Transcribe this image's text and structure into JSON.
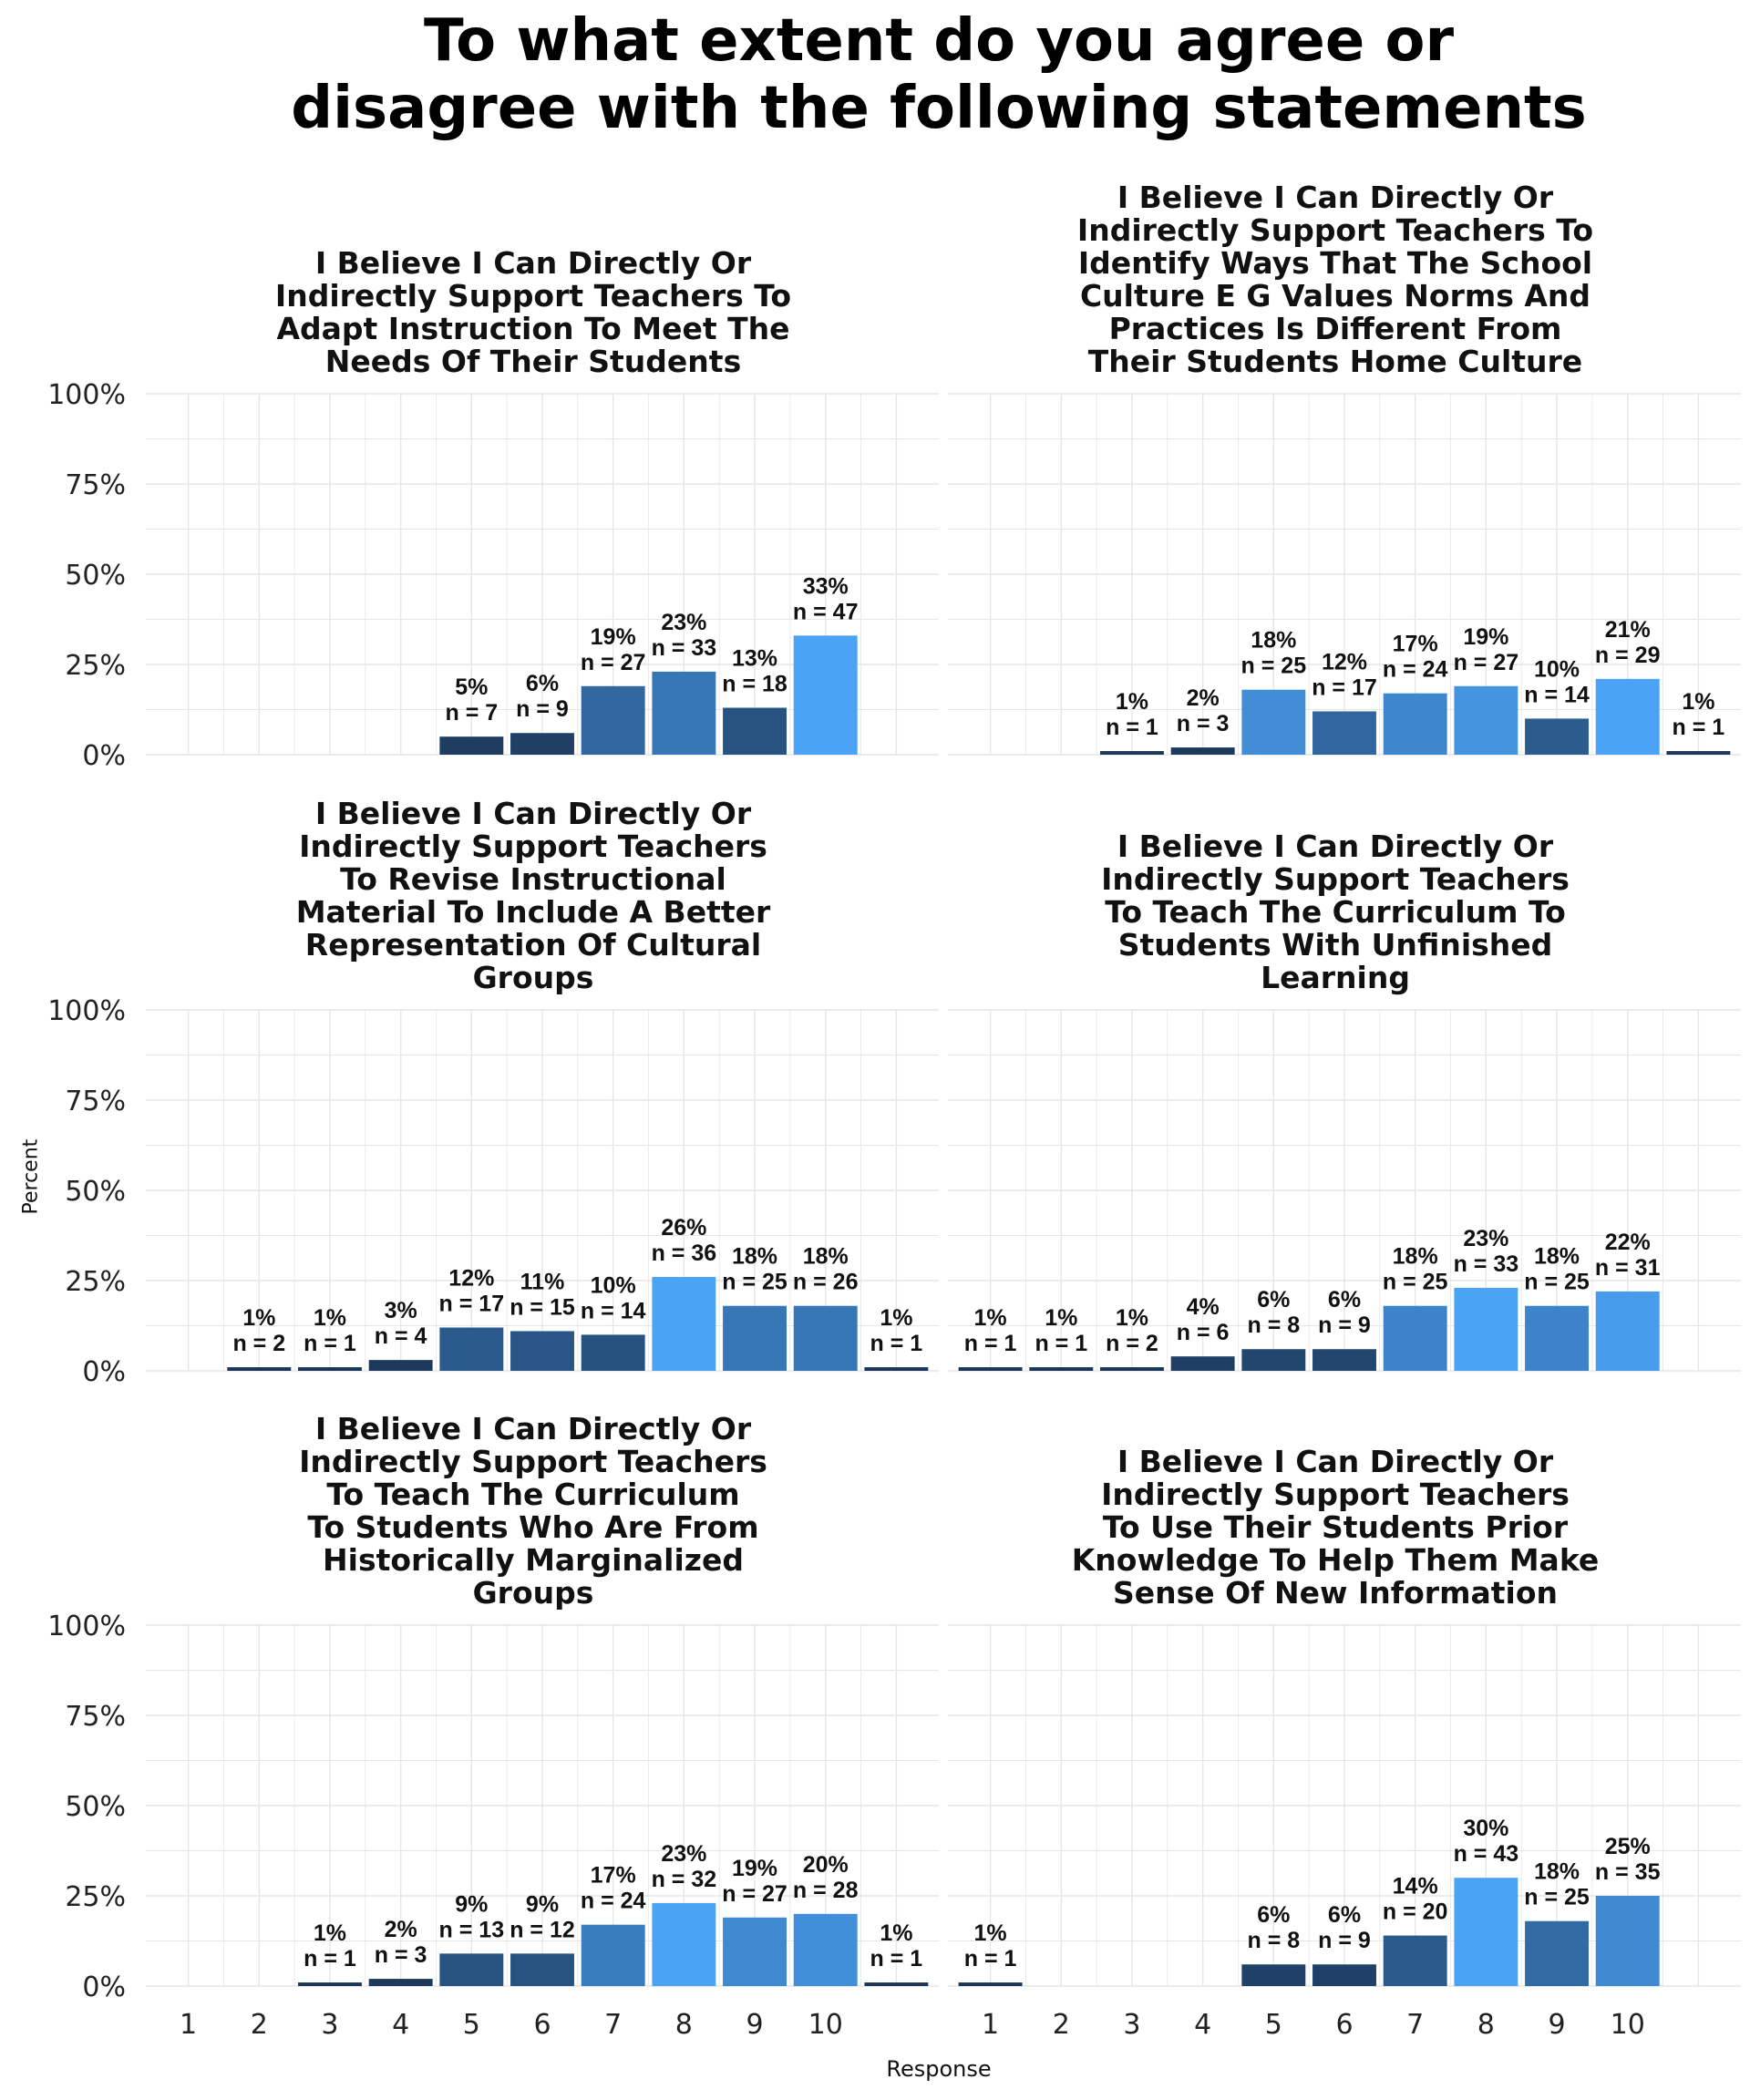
{
  "figure": {
    "title_lines": [
      "To what extent do you agree or",
      "disagree with the following statements"
    ],
    "xlabel": "Response",
    "ylabel": "Percent"
  },
  "chart_data": [
    {
      "type": "bar",
      "title": "I Believe I Can Directly Or Indirectly Support Teachers To Adapt Instruction To Meet The Needs Of Their Students",
      "title_lines": [
        "I Believe I Can Directly Or",
        "Indirectly Support Teachers To",
        "Adapt Instruction To Meet The",
        "Needs Of Their Students"
      ],
      "categories": [
        "5",
        "6",
        "7",
        "8",
        "9",
        "10"
      ],
      "values": [
        5,
        6,
        19,
        23,
        13,
        33
      ],
      "counts": [
        7,
        9,
        27,
        33,
        18,
        47
      ],
      "labels": [
        "5%",
        "6%",
        "19%",
        "23%",
        "13%",
        "33%"
      ],
      "n_labels": [
        "n = 7",
        "n = 9",
        "n = 27",
        "n = 33",
        "n = 18",
        "n = 47"
      ],
      "ylim": [
        0,
        100
      ]
    },
    {
      "type": "bar",
      "title": "I Believe I Can Directly Or Indirectly Support Teachers To Identify Ways That The School Culture E G Values Norms And Practices Is Different From Their Students Home Culture",
      "title_lines": [
        "I Believe I Can Directly Or",
        "Indirectly Support Teachers To",
        "Identify Ways That The School",
        "Culture E G Values Norms And",
        "Practices Is Different From",
        "Their Students Home Culture"
      ],
      "categories": [
        "3",
        "4",
        "5",
        "6",
        "7",
        "8",
        "9",
        "10",
        "11"
      ],
      "values": [
        1,
        2,
        18,
        12,
        17,
        19,
        10,
        21,
        1
      ],
      "counts": [
        1,
        3,
        25,
        17,
        24,
        27,
        14,
        29,
        1
      ],
      "labels": [
        "1%",
        "2%",
        "18%",
        "12%",
        "17%",
        "19%",
        "10%",
        "21%",
        "1%"
      ],
      "n_labels": [
        "n = 1",
        "n = 3",
        "n = 25",
        "n = 17",
        "n = 24",
        "n = 27",
        "n = 14",
        "n = 29",
        "n = 1"
      ],
      "ylim": [
        0,
        100
      ]
    },
    {
      "type": "bar",
      "title": "I Believe I Can Directly Or Indirectly Support Teachers To Revise Instructional Material To Include A Better Representation Of Cultural Groups",
      "title_lines": [
        "I Believe I Can Directly Or",
        "Indirectly Support Teachers",
        "To Revise Instructional",
        "Material To Include A Better",
        "Representation Of Cultural",
        "Groups"
      ],
      "categories": [
        "2",
        "3",
        "4",
        "5",
        "6",
        "7",
        "8",
        "9",
        "10",
        "11"
      ],
      "values": [
        1,
        1,
        3,
        12,
        11,
        10,
        26,
        18,
        18,
        1
      ],
      "counts": [
        2,
        1,
        4,
        17,
        15,
        14,
        36,
        25,
        26,
        1
      ],
      "labels": [
        "1%",
        "1%",
        "3%",
        "12%",
        "11%",
        "10%",
        "26%",
        "18%",
        "18%",
        "1%"
      ],
      "n_labels": [
        "n = 2",
        "n = 1",
        "n = 4",
        "n = 17",
        "n = 15",
        "n = 14",
        "n = 36",
        "n = 25",
        "n = 26",
        "n = 1"
      ],
      "ylim": [
        0,
        100
      ]
    },
    {
      "type": "bar",
      "title": "I Believe I Can Directly Or Indirectly Support Teachers To Teach The Curriculum To Students With Unfinished Learning",
      "title_lines": [
        "I Believe I Can Directly Or",
        "Indirectly Support Teachers",
        "To Teach The Curriculum To",
        "Students With Unfinished",
        "Learning"
      ],
      "categories": [
        "1",
        "2",
        "3",
        "4",
        "5",
        "6",
        "7",
        "8",
        "9",
        "10"
      ],
      "values": [
        1,
        1,
        1,
        4,
        6,
        6,
        18,
        23,
        18,
        22
      ],
      "counts": [
        1,
        1,
        2,
        6,
        8,
        9,
        25,
        33,
        25,
        31
      ],
      "labels": [
        "1%",
        "1%",
        "1%",
        "4%",
        "6%",
        "6%",
        "18%",
        "23%",
        "18%",
        "22%"
      ],
      "n_labels": [
        "n = 1",
        "n = 1",
        "n = 2",
        "n = 6",
        "n = 8",
        "n = 9",
        "n = 25",
        "n = 33",
        "n = 25",
        "n = 31"
      ],
      "ylim": [
        0,
        100
      ]
    },
    {
      "type": "bar",
      "title": "I Believe I Can Directly Or Indirectly Support Teachers To Teach The Curriculum To Students Who Are From Historically Marginalized Groups",
      "title_lines": [
        "I Believe I Can Directly Or",
        "Indirectly Support Teachers",
        "To Teach The Curriculum",
        "To Students Who Are From",
        "Historically Marginalized",
        "Groups"
      ],
      "categories": [
        "3",
        "4",
        "5",
        "6",
        "7",
        "8",
        "9",
        "10",
        "11"
      ],
      "values": [
        1,
        2,
        9,
        9,
        17,
        23,
        19,
        20,
        1
      ],
      "counts": [
        1,
        3,
        13,
        12,
        24,
        32,
        27,
        28,
        1
      ],
      "labels": [
        "1%",
        "2%",
        "9%",
        "9%",
        "17%",
        "23%",
        "19%",
        "20%",
        "1%"
      ],
      "n_labels": [
        "n = 1",
        "n = 3",
        "n = 13",
        "n = 12",
        "n = 24",
        "n = 32",
        "n = 27",
        "n = 28",
        "n = 1"
      ],
      "ylim": [
        0,
        100
      ]
    },
    {
      "type": "bar",
      "title": "I Believe I Can Directly Or Indirectly Support Teachers To Use Their Students Prior Knowledge To Help Them Make Sense Of New Information",
      "title_lines": [
        "I Believe I Can Directly Or",
        "Indirectly Support Teachers",
        "To Use Their Students Prior",
        "Knowledge To Help Them Make",
        "Sense Of New Information"
      ],
      "categories": [
        "1",
        "5",
        "6",
        "7",
        "8",
        "9",
        "10"
      ],
      "values": [
        1,
        6,
        6,
        14,
        30,
        18,
        25
      ],
      "counts": [
        1,
        8,
        9,
        20,
        43,
        25,
        35
      ],
      "labels": [
        "1%",
        "6%",
        "6%",
        "14%",
        "30%",
        "18%",
        "25%"
      ],
      "n_labels": [
        "n = 1",
        "n = 8",
        "n = 9",
        "n = 20",
        "n = 43",
        "n = 25",
        "n = 35"
      ],
      "ylim": [
        0,
        100
      ]
    }
  ],
  "axes": {
    "y_ticks": [
      "0%",
      "25%",
      "50%",
      "75%",
      "100%"
    ],
    "x_ticks": [
      "1",
      "2",
      "3",
      "4",
      "5",
      "6",
      "7",
      "8",
      "9",
      "10"
    ]
  },
  "colors": {
    "low": "#1b3556",
    "high": "#4aa3f5",
    "grid": "#e6e6e6"
  }
}
